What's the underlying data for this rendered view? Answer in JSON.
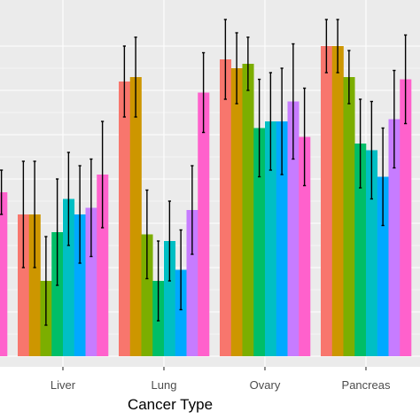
{
  "chart_data": {
    "type": "bar",
    "categories": [
      "",
      "Liver",
      "Lung",
      "Ovary",
      "Pancreas"
    ],
    "xlabel": "Cancer Type",
    "ylabel": "",
    "ylim": [
      0,
      7.4
    ],
    "grid": true,
    "panel_background": "#EBEBEB",
    "error_bars": true,
    "series": [
      {
        "color": "#F8766D",
        "values": [
          null,
          3.2,
          6.2,
          6.7,
          7.0
        ],
        "errors": [
          null,
          1.2,
          0.8,
          0.9,
          0.6
        ]
      },
      {
        "color": "#CD9600",
        "values": [
          null,
          3.2,
          6.3,
          6.5,
          7.0
        ],
        "errors": [
          null,
          1.2,
          0.9,
          0.8,
          0.6
        ]
      },
      {
        "color": "#7CAE00",
        "values": [
          null,
          1.7,
          2.75,
          6.6,
          6.3
        ],
        "errors": [
          null,
          1.0,
          1.0,
          0.6,
          0.6
        ]
      },
      {
        "color": "#00BE67",
        "values": [
          null,
          2.8,
          1.7,
          5.15,
          4.8
        ],
        "errors": [
          null,
          1.2,
          0.9,
          1.1,
          1.0
        ]
      },
      {
        "color": "#00BFC4",
        "values": [
          null,
          3.55,
          2.6,
          5.3,
          4.65
        ],
        "errors": [
          null,
          1.05,
          0.9,
          1.1,
          1.1
        ]
      },
      {
        "color": "#00A9FF",
        "values": [
          null,
          3.2,
          1.95,
          5.3,
          4.05
        ],
        "errors": [
          null,
          1.1,
          0.9,
          1.2,
          1.1
        ]
      },
      {
        "color": "#C77CFF",
        "values": [
          null,
          3.35,
          3.3,
          5.75,
          5.35
        ],
        "errors": [
          null,
          1.1,
          1.0,
          1.3,
          1.1
        ]
      },
      {
        "color": "#FF61CC",
        "values": [
          3.7,
          4.1,
          5.95,
          4.95,
          6.25
        ],
        "errors": [
          0.5,
          1.2,
          0.9,
          1.1,
          1.0
        ]
      }
    ]
  }
}
